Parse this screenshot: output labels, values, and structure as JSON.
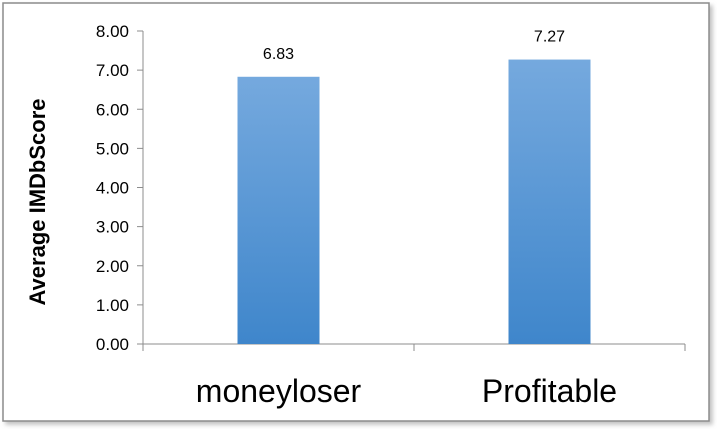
{
  "chart_data": {
    "type": "bar",
    "title": "",
    "xlabel": "",
    "ylabel": "Average IMDbScore",
    "categories": [
      "moneyloser",
      "Profitable"
    ],
    "values": [
      6.83,
      7.27
    ],
    "data_labels": [
      "6.83",
      "7.27"
    ],
    "y_ticks": [
      "0.00",
      "1.00",
      "2.00",
      "3.00",
      "4.00",
      "5.00",
      "6.00",
      "7.00",
      "8.00"
    ],
    "ylim": [
      0,
      8
    ],
    "grid": false,
    "legend": "none",
    "bar_color_top": "#75a9de",
    "bar_color_bottom": "#3f86cb",
    "border_color": "#8c8c8c"
  }
}
